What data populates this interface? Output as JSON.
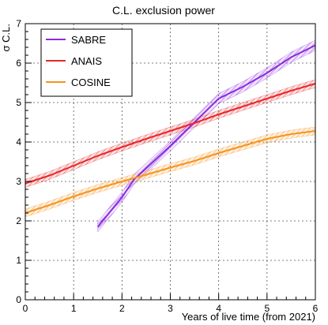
{
  "chart_data": {
    "type": "line",
    "title": "C.L. exclusion power",
    "xlabel": "Years of live time (from 2021)",
    "ylabel": "σ C.L.",
    "xlim": [
      0,
      6
    ],
    "ylim": [
      0,
      7
    ],
    "xticks": [
      "0",
      "1",
      "2",
      "3",
      "4",
      "5",
      "6"
    ],
    "yticks": [
      "0",
      "1",
      "2",
      "3",
      "4",
      "5",
      "6",
      "7"
    ],
    "grid": true,
    "legend_position": "top-left",
    "series": [
      {
        "name": "SABRE",
        "color": "#8a2be2",
        "x": [
          1.5,
          2.0,
          2.25,
          3.0,
          3.5,
          4.0,
          4.5,
          5.0,
          5.5,
          6.0
        ],
        "y": [
          1.85,
          2.6,
          3.05,
          3.9,
          4.5,
          5.1,
          5.4,
          5.75,
          6.15,
          6.45
        ],
        "band": 0.13
      },
      {
        "name": "ANAIS",
        "color": "#e8262a",
        "x": [
          0,
          0.5,
          1.0,
          1.5,
          2.0,
          2.5,
          3.0,
          3.5,
          4.0,
          4.5,
          5.0,
          5.5,
          6.0
        ],
        "y": [
          2.95,
          3.15,
          3.4,
          3.65,
          3.87,
          4.08,
          4.28,
          4.48,
          4.7,
          4.9,
          5.1,
          5.3,
          5.48
        ],
        "band": 0.1
      },
      {
        "name": "COSINE",
        "color": "#f7931e",
        "x": [
          0,
          0.5,
          1.0,
          1.5,
          2.0,
          2.5,
          3.0,
          3.5,
          4.0,
          4.5,
          5.0,
          5.5,
          6.0
        ],
        "y": [
          2.2,
          2.4,
          2.62,
          2.82,
          3.0,
          3.17,
          3.35,
          3.52,
          3.72,
          3.9,
          4.08,
          4.2,
          4.28
        ],
        "band": 0.1
      }
    ]
  }
}
